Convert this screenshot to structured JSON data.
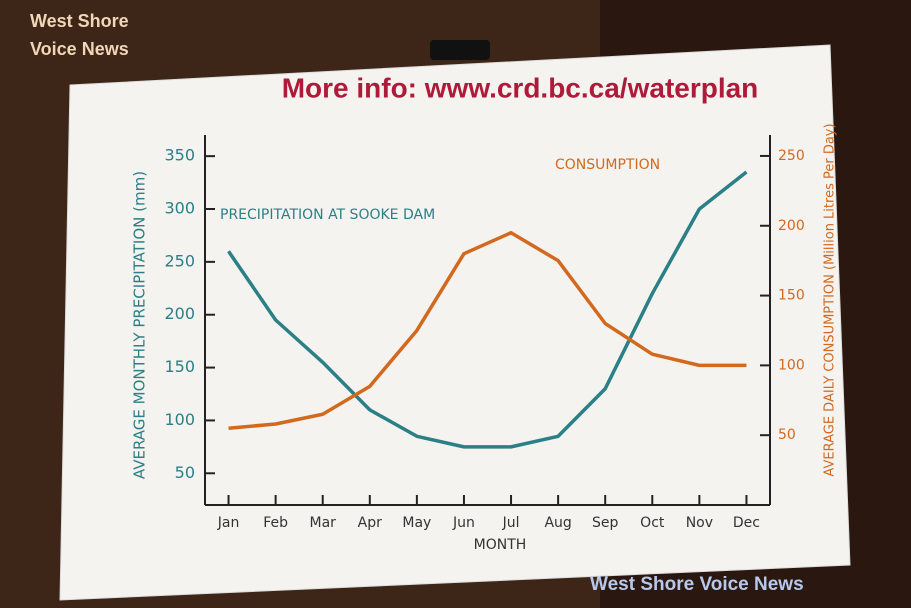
{
  "chart_data": {
    "type": "line",
    "title": "More info: www.crd.bc.ca/waterplan",
    "watermarks": [
      "West Shore",
      "Voice News",
      "West Shore Voice News"
    ],
    "x_label": "MONTH",
    "y_label": "AVERAGE MONTHLY PRECIPITATION (mm)",
    "y2_label": "AVERAGE DAILY CONSUMPTION (Million Litres Per Day)",
    "categories": [
      "Jan",
      "Feb",
      "Mar",
      "Apr",
      "May",
      "Jun",
      "Jul",
      "Aug",
      "Sep",
      "Oct",
      "Nov",
      "Dec"
    ],
    "series": [
      {
        "name": "PRECIPITATION AT SOOKE DAM",
        "color": "#2b7f86",
        "values": [
          260,
          195,
          155,
          110,
          85,
          75,
          75,
          85,
          130,
          220,
          300,
          335
        ]
      },
      {
        "name": "CONSUMPTION",
        "color": "#d2691e",
        "axis": "y2",
        "values": [
          55,
          58,
          65,
          85,
          125,
          180,
          195,
          175,
          130,
          108,
          100,
          100
        ]
      }
    ],
    "ylim": [
      20,
      370
    ],
    "yticks": [
      50,
      100,
      150,
      200,
      250,
      300,
      350
    ],
    "y2lim": [
      0,
      265
    ],
    "y2ticks": [
      50,
      100,
      150,
      200,
      250
    ],
    "grid": false
  }
}
